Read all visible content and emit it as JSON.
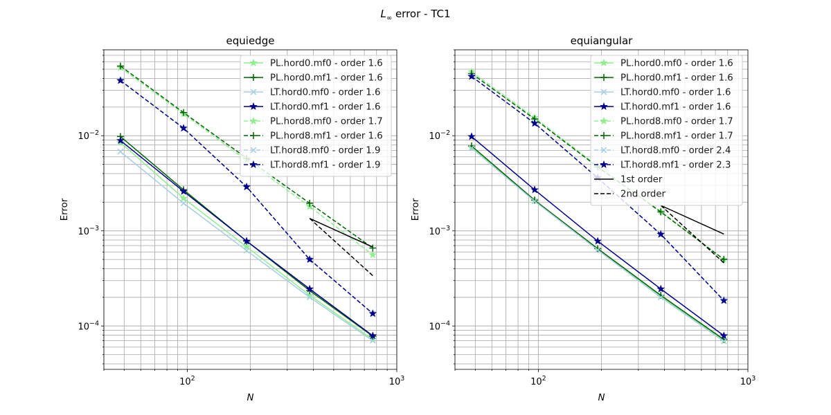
{
  "figure": {
    "suptitle_symbol": "L",
    "suptitle_subscript": "∞",
    "suptitle_rest": " error - TC1"
  },
  "chart_data": [
    {
      "type": "line",
      "title": "equiedge",
      "xlabel": "N",
      "ylabel": "Error",
      "xscale": "log",
      "yscale": "log",
      "xlim": [
        40,
        1000
      ],
      "ylim": [
        3.5e-05,
        0.08
      ],
      "grid": true,
      "legend_position": "upper right",
      "x": [
        48,
        96,
        192,
        384,
        768
      ],
      "x_ticks": [
        {
          "value": 100,
          "base": "10",
          "exp": "2"
        },
        {
          "value": 1000,
          "base": "10",
          "exp": "3"
        }
      ],
      "y_ticks": [
        {
          "value": 0.0001,
          "base": "10",
          "exp": "−4"
        },
        {
          "value": 0.001,
          "base": "10",
          "exp": "−3"
        },
        {
          "value": 0.01,
          "base": "10",
          "exp": "−2"
        }
      ],
      "series": [
        {
          "name": "PL.hord0.mf0 - order 1.6",
          "color": "#90ee90",
          "dash": "solid",
          "marker": "star",
          "values": [
            0.0085,
            0.0022,
            0.00068,
            0.00021,
            7.2e-05
          ]
        },
        {
          "name": "PL.hord0.mf1 - order 1.6",
          "color": "#006400",
          "dash": "solid",
          "marker": "plus",
          "values": [
            0.0098,
            0.0027,
            0.00078,
            0.000235,
            7.8e-05
          ]
        },
        {
          "name": "LT.hord0.mf0 - order 1.6",
          "color": "#a6cee3",
          "dash": "solid",
          "marker": "x",
          "values": [
            0.0068,
            0.00195,
            0.00062,
            0.0002,
            7e-05
          ]
        },
        {
          "name": "LT.hord0.mf1 - order 1.6",
          "color": "#00008b",
          "dash": "solid",
          "marker": "star",
          "values": [
            0.0089,
            0.0026,
            0.00078,
            0.000245,
            7.9e-05
          ]
        },
        {
          "name": "PL.hord8.mf0 - order 1.7",
          "color": "#90ee90",
          "dash": "dashed",
          "marker": "star",
          "values": [
            0.052,
            0.017,
            0.0055,
            0.0018,
            0.00056
          ]
        },
        {
          "name": "PL.hord8.mf1 - order 1.6",
          "color": "#006400",
          "dash": "dashed",
          "marker": "plus",
          "values": [
            0.054,
            0.0175,
            0.0058,
            0.00195,
            0.00066
          ]
        },
        {
          "name": "LT.hord8.mf0 - order 1.9",
          "color": "#a6cee3",
          "dash": "dashed",
          "marker": "x",
          "values": [
            0.038,
            0.012,
            0.0029,
            0.0005,
            0.000135
          ]
        },
        {
          "name": "LT.hord8.mf1 - order 1.9",
          "color": "#00008b",
          "dash": "dashed",
          "marker": "star",
          "values": [
            0.038,
            0.012,
            0.0029,
            0.0005,
            0.000135
          ]
        }
      ],
      "reference_lines": [
        {
          "order": "1st",
          "color": "#000000",
          "dash": "solid",
          "x": [
            384,
            768
          ],
          "y": [
            0.00135,
            0.000675
          ]
        },
        {
          "order": "2nd",
          "color": "#000000",
          "dash": "dashed",
          "x": [
            384,
            768
          ],
          "y": [
            0.00135,
            0.000338
          ]
        }
      ]
    },
    {
      "type": "line",
      "title": "equiangular",
      "xlabel": "N",
      "ylabel": "Error",
      "xscale": "log",
      "yscale": "log",
      "xlim": [
        40,
        1000
      ],
      "ylim": [
        3.5e-05,
        0.08
      ],
      "grid": true,
      "legend_position": "upper right",
      "x": [
        48,
        96,
        192,
        384,
        768
      ],
      "x_ticks": [
        {
          "value": 100,
          "base": "10",
          "exp": "2"
        },
        {
          "value": 1000,
          "base": "10",
          "exp": "3"
        }
      ],
      "y_ticks": [
        {
          "value": 0.0001,
          "base": "10",
          "exp": "−4"
        },
        {
          "value": 0.001,
          "base": "10",
          "exp": "−3"
        },
        {
          "value": 0.01,
          "base": "10",
          "exp": "−2"
        }
      ],
      "series": [
        {
          "name": "PL.hord0.mf0 - order 1.6",
          "color": "#90ee90",
          "dash": "solid",
          "marker": "star",
          "values": [
            0.0075,
            0.0021,
            0.00064,
            0.000205,
            7e-05
          ]
        },
        {
          "name": "PL.hord0.mf1 - order 1.6",
          "color": "#006400",
          "dash": "solid",
          "marker": "plus",
          "values": [
            0.0078,
            0.0021,
            0.00065,
            0.00021,
            7.2e-05
          ]
        },
        {
          "name": "LT.hord0.mf0 - order 1.6",
          "color": "#a6cee3",
          "dash": "solid",
          "marker": "x",
          "values": [
            0.0074,
            0.00205,
            0.00063,
            0.0002,
            6.9e-05
          ]
        },
        {
          "name": "LT.hord0.mf1 - order 1.6",
          "color": "#00008b",
          "dash": "solid",
          "marker": "star",
          "values": [
            0.0098,
            0.0027,
            0.00078,
            0.000245,
            7.9e-05
          ]
        },
        {
          "name": "PL.hord8.mf0 - order 1.7",
          "color": "#90ee90",
          "dash": "dashed",
          "marker": "star",
          "values": [
            0.047,
            0.0155,
            0.0048,
            0.0016,
            0.0005
          ]
        },
        {
          "name": "PL.hord8.mf1 - order 1.7",
          "color": "#006400",
          "dash": "dashed",
          "marker": "plus",
          "values": [
            0.045,
            0.015,
            0.0047,
            0.00158,
            0.0005
          ]
        },
        {
          "name": "LT.hord8.mf0 - order 2.4",
          "color": "#a6cee3",
          "dash": "dashed",
          "marker": "x",
          "values": [
            0.042,
            0.0135,
            0.0036,
            0.00092,
            0.000185
          ]
        },
        {
          "name": "LT.hord8.mf1 - order 2.3",
          "color": "#00008b",
          "dash": "dashed",
          "marker": "star",
          "values": [
            0.042,
            0.0135,
            0.0036,
            0.00092,
            0.000185
          ]
        }
      ],
      "reference_lines": [
        {
          "order": "1st",
          "color": "#000000",
          "dash": "solid",
          "x": [
            384,
            768
          ],
          "y": [
            0.00185,
            0.000925
          ]
        },
        {
          "order": "2nd",
          "color": "#000000",
          "dash": "dashed",
          "x": [
            384,
            768
          ],
          "y": [
            0.00185,
            0.00046
          ]
        }
      ],
      "extra_legend": [
        {
          "name": "1st order",
          "color": "#000000",
          "dash": "solid"
        },
        {
          "name": "2nd order",
          "color": "#000000",
          "dash": "dashed"
        }
      ]
    }
  ]
}
